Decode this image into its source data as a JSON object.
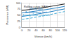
{
  "chart_data": {
    "type": "line",
    "x_label": "Vitesse (km/h)",
    "y_label": "Puissance (kW)",
    "x": [
      0,
      20,
      40,
      60,
      80,
      100,
      120
    ],
    "xlim": [
      0,
      120
    ],
    "xticks": [
      0,
      20,
      40,
      60,
      80,
      100,
      120
    ],
    "ylim": [
      0,
      100
    ],
    "yticks": [
      0,
      25,
      50,
      75,
      100
    ],
    "grid": true,
    "series": [
      {
        "name": "Rolling curve (SAE)",
        "color": "#1a1a1a",
        "line_style": "solid",
        "values": [
          68,
          72,
          76,
          80,
          85,
          90,
          95
        ]
      },
      {
        "name": "EN 80 kph",
        "color": "#1f7fc4",
        "line_style": "solid",
        "values": [
          58,
          62,
          66,
          70,
          75,
          80,
          85
        ]
      },
      {
        "name": "Aerodynamic limit",
        "color": "#1f7fc4",
        "line_style": "solid",
        "values": [
          44,
          48,
          53,
          58,
          63,
          69,
          75
        ]
      },
      {
        "name": "Aerodynamic standard",
        "color": "#3fa9d6",
        "line_style": "dashed",
        "values": [
          32,
          36,
          41,
          46,
          52,
          58,
          64
        ]
      }
    ]
  }
}
